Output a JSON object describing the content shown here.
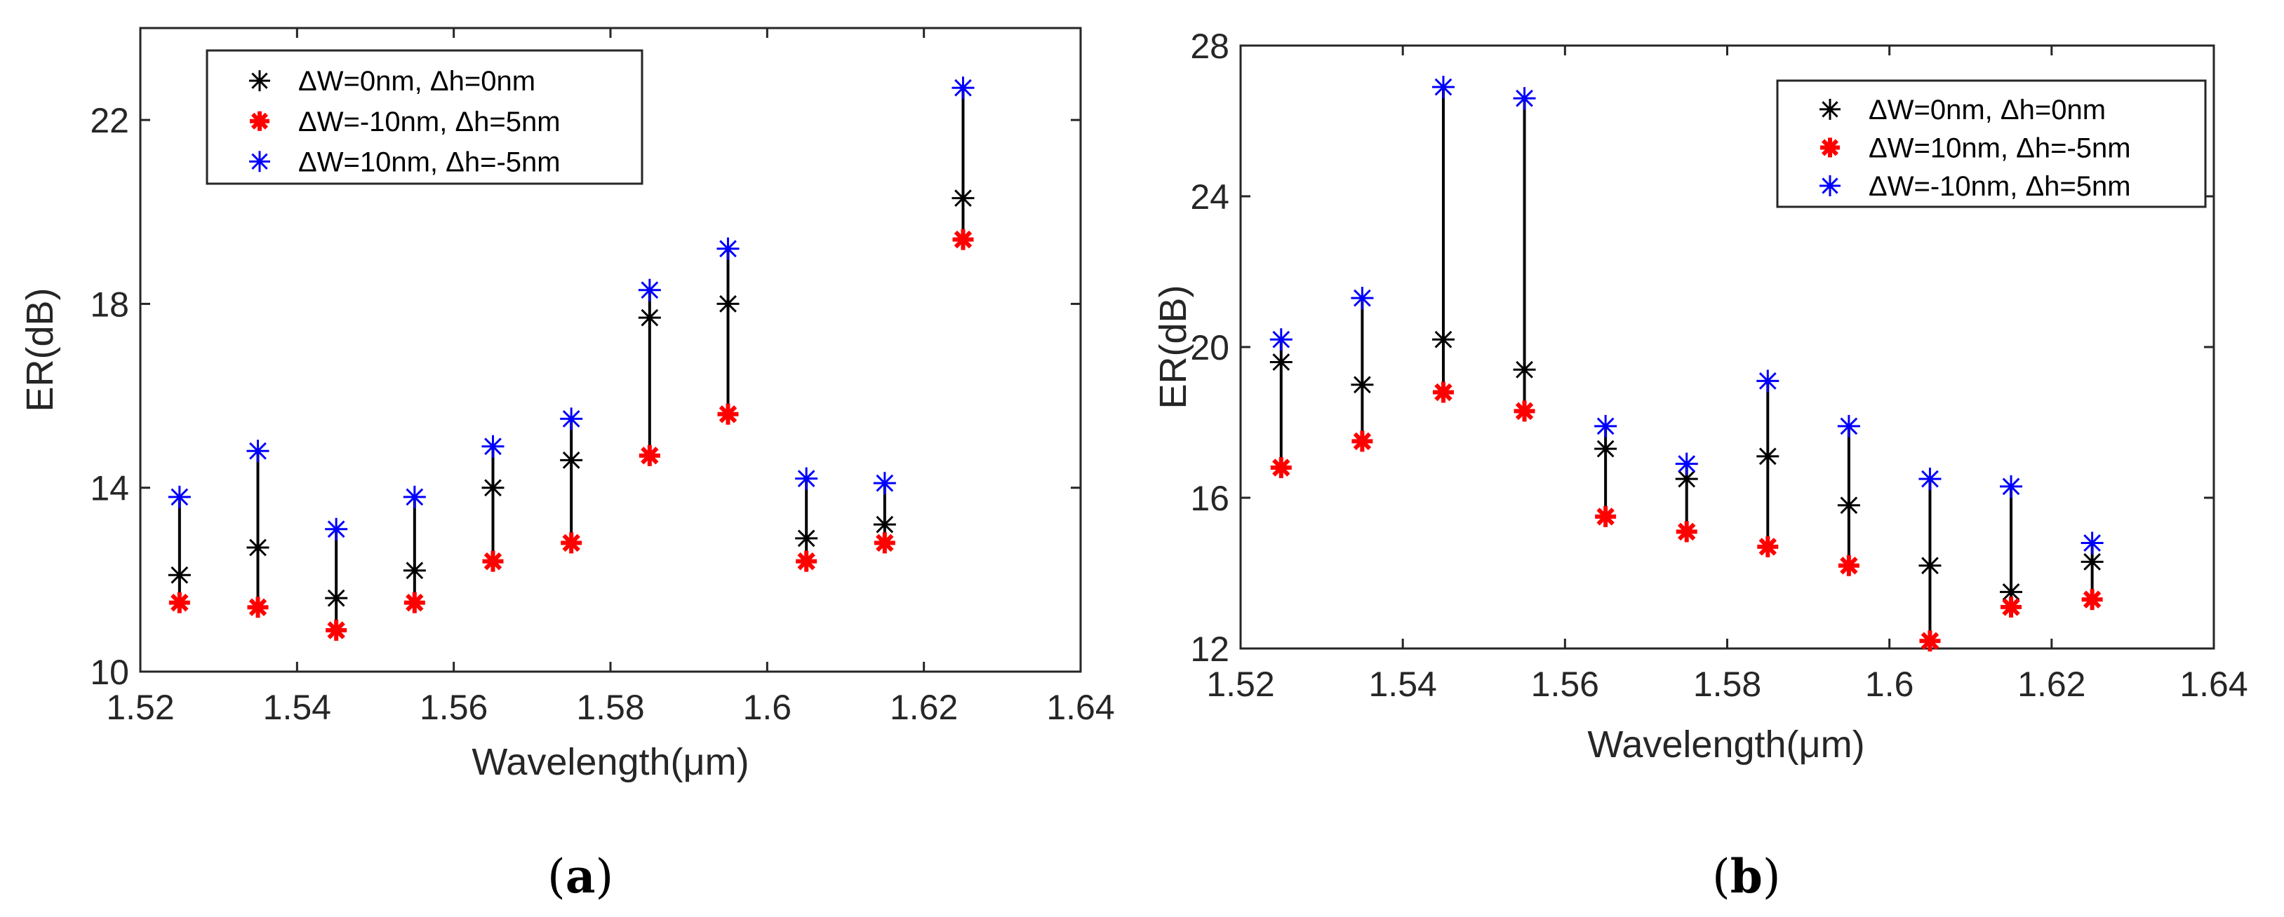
{
  "chart_data": [
    {
      "id": "a",
      "type": "scatter",
      "caption_letter": "a",
      "caption_open": "(",
      "caption_close": ")",
      "xlabel": "Wavelength(μm)",
      "ylabel": "ER(dB)",
      "xlim": [
        1.52,
        1.64
      ],
      "ylim": [
        10,
        24
      ],
      "xticks": [
        1.52,
        1.54,
        1.56,
        1.58,
        1.6,
        1.62,
        1.64
      ],
      "xtick_labels": [
        "1.52",
        "1.54",
        "1.56",
        "1.58",
        "1.6",
        "1.62",
        "1.64"
      ],
      "yticks": [
        10,
        14,
        18,
        22
      ],
      "ytick_labels": [
        "10",
        "14",
        "18",
        "22"
      ],
      "x": [
        1.525,
        1.535,
        1.545,
        1.555,
        1.565,
        1.575,
        1.585,
        1.595,
        1.605,
        1.615,
        1.625
      ],
      "series": [
        {
          "name": "ΔW=0nm, Δh=0nm",
          "color": "#000000",
          "marker": "star-thin",
          "values": [
            12.1,
            12.7,
            11.6,
            12.2,
            14.0,
            14.6,
            17.7,
            18.0,
            12.9,
            13.2,
            20.3
          ]
        },
        {
          "name": "ΔW=-10nm, Δh=5nm",
          "color": "#ff0000",
          "marker": "star-bold",
          "values": [
            11.5,
            11.4,
            10.9,
            11.5,
            12.4,
            12.8,
            14.7,
            15.6,
            12.4,
            12.8,
            19.4
          ]
        },
        {
          "name": "ΔW=10nm, Δh=-5nm",
          "color": "#0000ff",
          "marker": "star-thin",
          "values": [
            13.8,
            14.8,
            13.1,
            13.8,
            14.9,
            15.5,
            18.3,
            19.2,
            14.2,
            14.1,
            22.7
          ]
        }
      ],
      "legend_position": "top-left"
    },
    {
      "id": "b",
      "type": "scatter",
      "caption_letter": "b",
      "caption_open": "(",
      "caption_close": ")",
      "xlabel": "Wavelength(μm)",
      "ylabel": "ER(dB)",
      "xlim": [
        1.52,
        1.64
      ],
      "ylim": [
        12,
        28
      ],
      "xticks": [
        1.52,
        1.54,
        1.56,
        1.58,
        1.6,
        1.62,
        1.64
      ],
      "xtick_labels": [
        "1.52",
        "1.54",
        "1.56",
        "1.58",
        "1.6",
        "1.62",
        "1.64"
      ],
      "yticks": [
        12,
        16,
        20,
        24,
        28
      ],
      "ytick_labels": [
        "12",
        "16",
        "20",
        "24",
        "28"
      ],
      "x": [
        1.525,
        1.535,
        1.545,
        1.555,
        1.565,
        1.575,
        1.585,
        1.595,
        1.605,
        1.615,
        1.625
      ],
      "series": [
        {
          "name": "ΔW=0nm, Δh=0nm",
          "color": "#000000",
          "marker": "star-thin",
          "values": [
            19.6,
            19.0,
            20.2,
            19.4,
            17.3,
            16.5,
            17.1,
            15.8,
            14.2,
            13.5,
            14.3
          ]
        },
        {
          "name": "ΔW=10nm, Δh=-5nm",
          "color": "#ff0000",
          "marker": "star-bold",
          "values": [
            16.8,
            17.5,
            18.8,
            18.3,
            15.5,
            15.1,
            14.7,
            14.2,
            12.2,
            13.1,
            13.3
          ]
        },
        {
          "name": "ΔW=-10nm, Δh=5nm",
          "color": "#0000ff",
          "marker": "star-thin",
          "values": [
            20.2,
            21.3,
            26.9,
            26.6,
            17.9,
            16.9,
            19.1,
            17.9,
            16.5,
            16.3,
            14.8
          ]
        }
      ],
      "legend_position": "top-right"
    }
  ]
}
